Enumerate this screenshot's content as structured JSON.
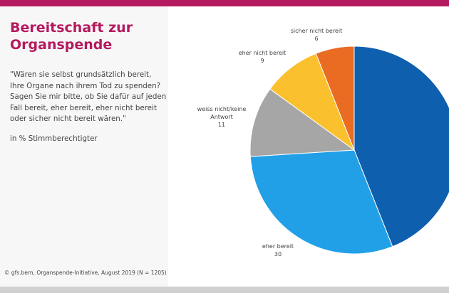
{
  "title": "Bereitschaft zur Organspende",
  "question": "\"Wären sie selbst grundsätzlich bereit, Ihre Organe nach ihrem Tod zu spenden? Sagen Sie mir bitte, ob Sie dafür auf jeden Fall bereit, eher bereit, eher nicht bereit oder sicher nicht bereit wären.\"",
  "unit": "in % Stimmberechtigter",
  "source": "© gfs.bern, Organspende-Initiative, August 2019 (N = 1205)",
  "chart_data": {
    "type": "pie",
    "start": "top, clockwise",
    "slices": [
      {
        "label": "",
        "value": 44,
        "color": "#0f5faf"
      },
      {
        "label": "eher bereit",
        "value": 30,
        "color": "#21a0e8"
      },
      {
        "label": "weiss nicht/keine Antwort",
        "value": 11,
        "color": "#a6a6a6"
      },
      {
        "label": "eher nicht bereit",
        "value": 9,
        "color": "#fbc02d"
      },
      {
        "label": "sicher nicht bereit",
        "value": 6,
        "color": "#ea6b22"
      }
    ]
  }
}
